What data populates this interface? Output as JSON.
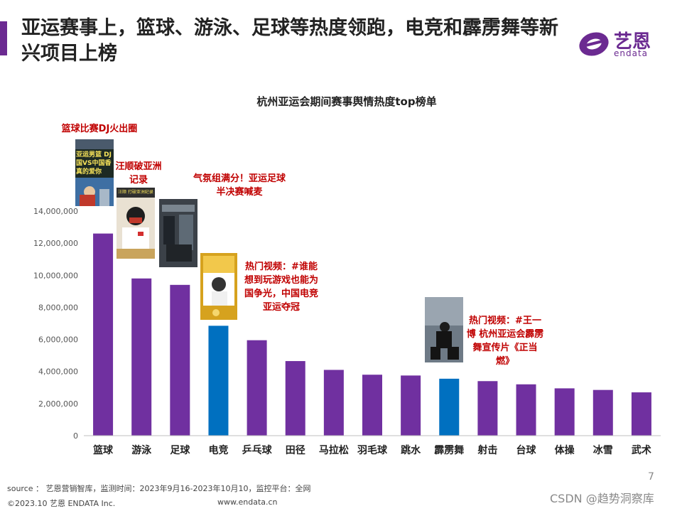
{
  "header": {
    "title": "亚运赛事上，篮球、游泳、足球等热度领跑，电竞和霹雳舞等新兴项目上榜"
  },
  "logo": {
    "name_cn": "艺恩",
    "name_en": "endata"
  },
  "annotations": [
    {
      "text": "篮球比赛DJ火出圈",
      "target": "篮球"
    },
    {
      "text": "汪顺破亚洲记录",
      "target": "游泳"
    },
    {
      "text": "气氛组满分！亚运足球半决赛喊麦",
      "target": "足球"
    },
    {
      "text": "热门视频：#谁能想到玩游戏也能为国争光，中国电竞亚运夺冠",
      "target": "电竞"
    },
    {
      "text": "热门视频：#王一博 杭州亚运会霹雳舞宣传片《正当燃》",
      "target": "霹雳舞"
    }
  ],
  "thumbnails": [
    {
      "caption": "亚运男篮 DJ 国VS中国香 真的爱你"
    },
    {
      "caption": "汪顺 打破亚洲纪录"
    }
  ],
  "chart_data": {
    "type": "bar",
    "title": "杭州亚运会期间赛事舆情热度top榜单",
    "categories": [
      "篮球",
      "游泳",
      "足球",
      "电竞",
      "乒乓球",
      "田径",
      "马拉松",
      "羽毛球",
      "跳水",
      "霹雳舞",
      "射击",
      "台球",
      "体操",
      "冰雪",
      "武术"
    ],
    "values": [
      12600000,
      9800000,
      9400000,
      6850000,
      5950000,
      4650000,
      4100000,
      3800000,
      3750000,
      3550000,
      3400000,
      3200000,
      2950000,
      2850000,
      2700000
    ],
    "highlight": [
      "电竞",
      "霹雳舞"
    ],
    "colors": {
      "default": "#7030a0",
      "highlight": "#0070c0",
      "axis": "#bfbfbf",
      "annotation": "#c00000"
    },
    "ylim": [
      0,
      14000000
    ],
    "yticks": [
      0,
      2000000,
      4000000,
      6000000,
      8000000,
      10000000,
      12000000,
      14000000
    ],
    "ytick_labels": [
      "0",
      "2,000,000",
      "4,000,000",
      "6,000,000",
      "8,000,000",
      "10,000,000",
      "12,000,000",
      "14,000,000"
    ],
    "xlabel": "",
    "ylabel": "",
    "grid": false
  },
  "footer": {
    "source": "source ： 艺恩营销智库，监测时间：2023年9月16-2023年10月10，监控平台：全网",
    "copyright": "©2023.10  艺恩 ENDATA Inc.",
    "website": "www.endata.cn",
    "page": "7",
    "watermark": "CSDN @趋势洞察库"
  }
}
